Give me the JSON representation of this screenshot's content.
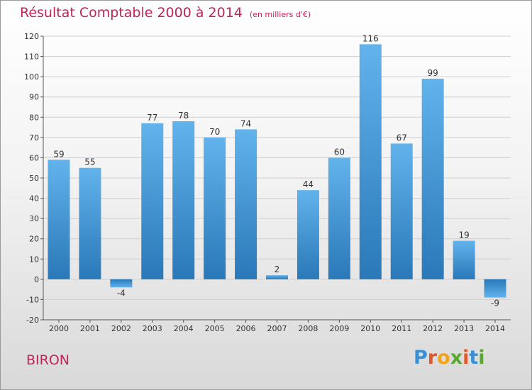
{
  "title": "Résultat Comptable 2000 à 2014",
  "unit": "(en milliers d'€)",
  "commune": "BIRON",
  "brand": {
    "text": "Proxiti",
    "letter_colors": [
      "#3a8fd6",
      "#e3572a",
      "#f2a317",
      "#5aa832",
      "#e3572a",
      "#3a8fd6",
      "#5aa832"
    ]
  },
  "colors": {
    "title": "#c0245c",
    "bar_light": "#5fb0ea",
    "bar_dark": "#2a78b8",
    "grid": "#cfcfcf"
  },
  "chart_data": {
    "type": "bar",
    "title": "Résultat Comptable 2000 à 2014",
    "xlabel": "",
    "ylabel": "",
    "categories": [
      "2000",
      "2001",
      "2002",
      "2003",
      "2004",
      "2005",
      "2006",
      "2007",
      "2008",
      "2009",
      "2010",
      "2011",
      "2012",
      "2013",
      "2014"
    ],
    "values": [
      59,
      55,
      -4,
      77,
      78,
      70,
      74,
      2,
      44,
      60,
      116,
      67,
      99,
      19,
      -9
    ],
    "ylim": [
      -20,
      120
    ],
    "yticks": [
      -20,
      -10,
      0,
      10,
      20,
      30,
      40,
      50,
      60,
      70,
      80,
      90,
      100,
      110,
      120
    ],
    "grid": true
  }
}
